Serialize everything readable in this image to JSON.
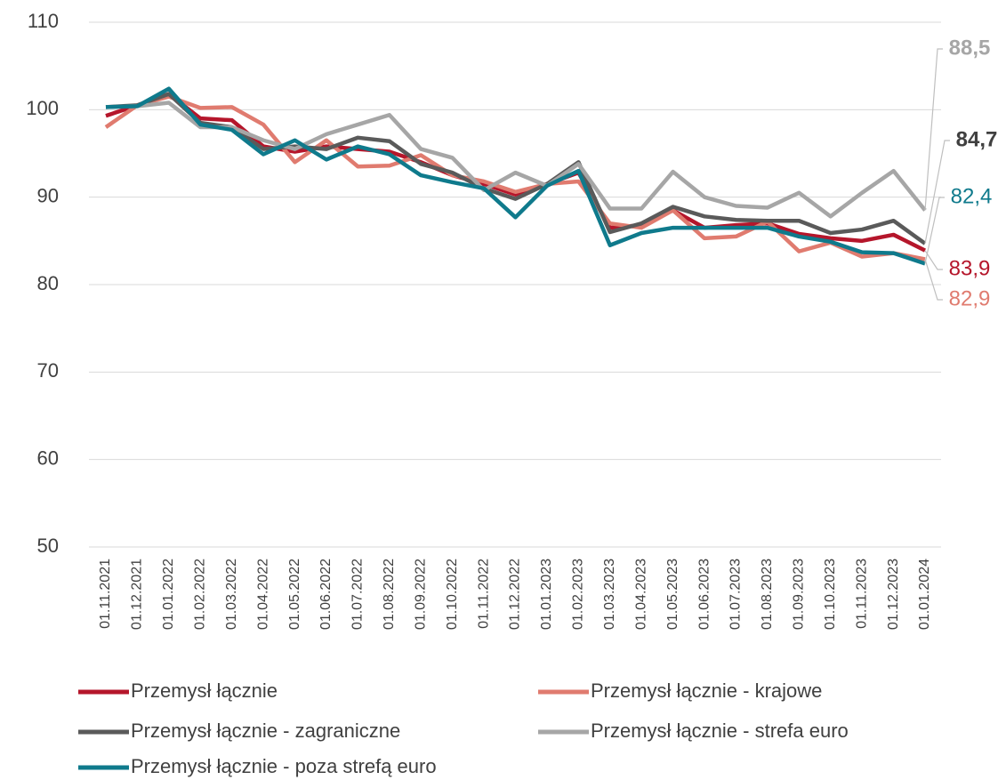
{
  "chart_data": {
    "type": "line",
    "categories": [
      "01.11.2021",
      "01.12.2021",
      "01.01.2022",
      "01.02.2022",
      "01.03.2022",
      "01.04.2022",
      "01.05.2022",
      "01.06.2022",
      "01.07.2022",
      "01.08.2022",
      "01.09.2022",
      "01.10.2022",
      "01.11.2022",
      "01.12.2022",
      "01.01.2023",
      "01.02.2023",
      "01.03.2023",
      "01.04.2023",
      "01.05.2023",
      "01.06.2023",
      "01.07.2023",
      "01.08.2023",
      "01.09.2023",
      "01.10.2023",
      "01.11.2023",
      "01.12.2023",
      "01.01.2024"
    ],
    "series": [
      {
        "name": "Przemysł łącznie",
        "color": "#b5162b",
        "values": [
          99.3,
          100.5,
          101.8,
          99.0,
          98.8,
          95.8,
          95.2,
          95.8,
          95.5,
          95.2,
          94.0,
          92.5,
          91.5,
          90.3,
          91.5,
          92.8,
          86.5,
          86.8,
          88.5,
          86.5,
          86.8,
          87.0,
          85.8,
          85.3,
          85.0,
          85.7,
          83.9
        ],
        "value_labels": [
          null,
          null,
          null,
          null,
          null,
          null,
          null,
          null,
          null,
          null,
          null,
          null,
          null,
          null,
          null,
          null,
          null,
          null,
          null,
          null,
          null,
          null,
          null,
          null,
          null,
          null,
          "83,9"
        ]
      },
      {
        "name": "Przemysł łącznie - krajowe",
        "color": "#e07b6f",
        "values": [
          98.0,
          100.5,
          101.5,
          100.2,
          100.3,
          98.3,
          94.0,
          96.5,
          93.5,
          93.6,
          94.8,
          92.5,
          91.8,
          90.6,
          91.5,
          91.8,
          87.0,
          86.5,
          88.5,
          85.3,
          85.5,
          87.2,
          83.8,
          84.8,
          83.2,
          83.6,
          82.9
        ],
        "value_labels": [
          null,
          null,
          null,
          null,
          null,
          null,
          null,
          null,
          null,
          null,
          null,
          null,
          null,
          null,
          null,
          null,
          null,
          null,
          null,
          null,
          null,
          null,
          null,
          null,
          null,
          null,
          "82,9"
        ]
      },
      {
        "name": "Przemysł łącznie - zagraniczne",
        "color": "#5a5a5a",
        "values": [
          100.3,
          100.5,
          101.8,
          98.5,
          98.0,
          95.5,
          95.8,
          95.5,
          96.8,
          96.4,
          93.8,
          92.8,
          91.0,
          89.8,
          91.5,
          94.0,
          86.0,
          87.0,
          88.9,
          87.8,
          87.4,
          87.3,
          87.3,
          85.9,
          86.3,
          87.3,
          84.7
        ],
        "value_labels": [
          null,
          null,
          null,
          null,
          null,
          null,
          null,
          null,
          null,
          null,
          null,
          null,
          null,
          null,
          null,
          null,
          null,
          null,
          null,
          null,
          null,
          null,
          null,
          null,
          null,
          null,
          "84,7"
        ]
      },
      {
        "name": "Przemysł łącznie - strefa euro",
        "color": "#a6a6a6",
        "values": [
          100.3,
          100.4,
          100.8,
          98.0,
          98.0,
          96.5,
          95.5,
          97.2,
          98.3,
          99.4,
          95.5,
          94.5,
          90.8,
          92.8,
          91.3,
          93.8,
          88.7,
          88.7,
          92.9,
          90.0,
          89.0,
          88.8,
          90.5,
          87.8,
          90.5,
          93.0,
          88.5
        ],
        "value_labels": [
          null,
          null,
          null,
          null,
          null,
          null,
          null,
          null,
          null,
          null,
          null,
          null,
          null,
          null,
          null,
          null,
          null,
          null,
          null,
          null,
          null,
          null,
          null,
          null,
          null,
          null,
          "88,5"
        ]
      },
      {
        "name": "Przemysł łącznie - poza strefą euro",
        "color": "#0f7a8c",
        "values": [
          100.3,
          100.4,
          102.4,
          98.3,
          97.7,
          94.9,
          96.5,
          94.3,
          95.8,
          94.9,
          92.5,
          91.7,
          91.0,
          87.7,
          91.3,
          93.0,
          84.5,
          85.9,
          86.5,
          86.5,
          86.5,
          86.5,
          85.5,
          84.9,
          83.7,
          83.6,
          82.4
        ],
        "value_labels": [
          null,
          null,
          null,
          null,
          null,
          null,
          null,
          null,
          null,
          null,
          null,
          null,
          null,
          null,
          null,
          null,
          null,
          null,
          null,
          null,
          null,
          null,
          null,
          null,
          null,
          null,
          "82,4"
        ]
      }
    ],
    "ylim": [
      50,
      110
    ],
    "yticks": [
      50,
      60,
      70,
      80,
      90,
      100,
      110
    ],
    "grid": true
  }
}
